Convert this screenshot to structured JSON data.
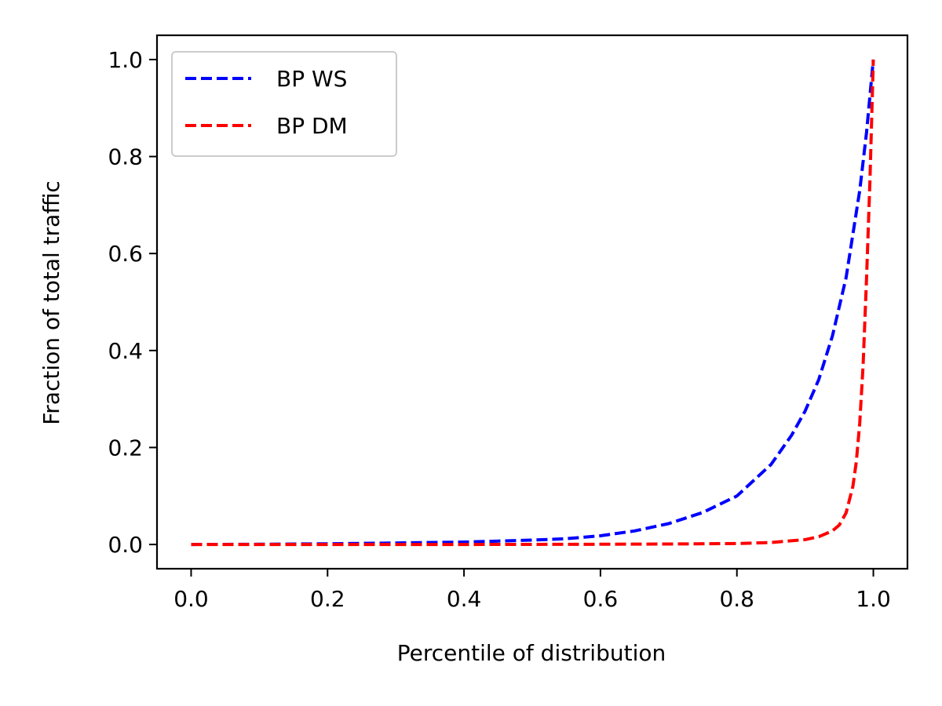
{
  "chart_data": {
    "type": "line",
    "title": "",
    "xlabel": "Percentile of distribution",
    "ylabel": "Fraction of total traffic",
    "xlim": [
      -0.05,
      1.05
    ],
    "ylim": [
      -0.05,
      1.05
    ],
    "xticks": [
      0.0,
      0.2,
      0.4,
      0.6,
      0.8,
      1.0
    ],
    "xtick_labels": [
      "0.0",
      "0.2",
      "0.4",
      "0.6",
      "0.8",
      "1.0"
    ],
    "yticks": [
      0.0,
      0.2,
      0.4,
      0.6,
      0.8,
      1.0
    ],
    "ytick_labels": [
      "0.0",
      "0.2",
      "0.4",
      "0.6",
      "0.8",
      "1.0"
    ],
    "grid": false,
    "legend_position": "top-left",
    "series": [
      {
        "name": "BP WS",
        "color": "#0000ff",
        "line_style": "dashed",
        "x": [
          0.0,
          0.1,
          0.2,
          0.3,
          0.4,
          0.5,
          0.55,
          0.6,
          0.65,
          0.7,
          0.75,
          0.8,
          0.85,
          0.88,
          0.9,
          0.92,
          0.94,
          0.96,
          0.98,
          0.99,
          1.0
        ],
        "y": [
          0.0,
          0.0005,
          0.0015,
          0.003,
          0.005,
          0.009,
          0.012,
          0.018,
          0.028,
          0.043,
          0.066,
          0.1,
          0.165,
          0.225,
          0.275,
          0.34,
          0.43,
          0.55,
          0.73,
          0.85,
          1.0
        ]
      },
      {
        "name": "BP DM",
        "color": "#ff0000",
        "line_style": "dashed",
        "x": [
          0.0,
          0.2,
          0.4,
          0.6,
          0.7,
          0.8,
          0.85,
          0.9,
          0.92,
          0.94,
          0.95,
          0.96,
          0.97,
          0.975,
          0.98,
          0.985,
          0.99,
          0.995,
          1.0
        ],
        "y": [
          0.0,
          0.0,
          0.0,
          0.0005,
          0.001,
          0.002,
          0.004,
          0.01,
          0.016,
          0.028,
          0.04,
          0.065,
          0.12,
          0.17,
          0.25,
          0.37,
          0.55,
          0.75,
          1.0
        ]
      }
    ]
  }
}
